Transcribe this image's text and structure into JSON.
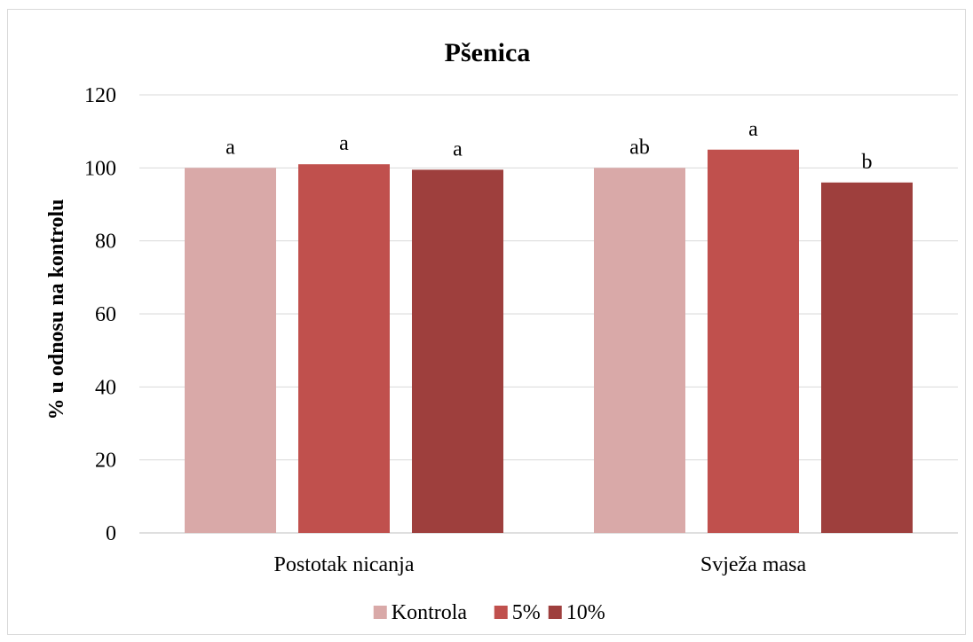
{
  "chart_data": {
    "type": "bar",
    "title": "Pšenica",
    "xlabel": "",
    "ylabel": "% u odnosu na kontrolu",
    "ylim": [
      0,
      120
    ],
    "yticks": [
      "0",
      "20",
      "40",
      "60",
      "80",
      "100",
      "120"
    ],
    "grid": true,
    "legend_position": "bottom",
    "categories": [
      "Postotak nicanja",
      "Svježa masa"
    ],
    "series": [
      {
        "name": "Kontrola",
        "color": "#d9a9a8",
        "values": [
          100,
          100
        ],
        "labels": [
          "a",
          "ab"
        ]
      },
      {
        "name": "5%",
        "color": "#c0504d",
        "values": [
          101,
          105
        ],
        "labels": [
          "a",
          "a"
        ]
      },
      {
        "name": "10%",
        "color": "#9e3f3d",
        "values": [
          99.5,
          96
        ],
        "labels": [
          "a",
          "b"
        ]
      }
    ]
  }
}
